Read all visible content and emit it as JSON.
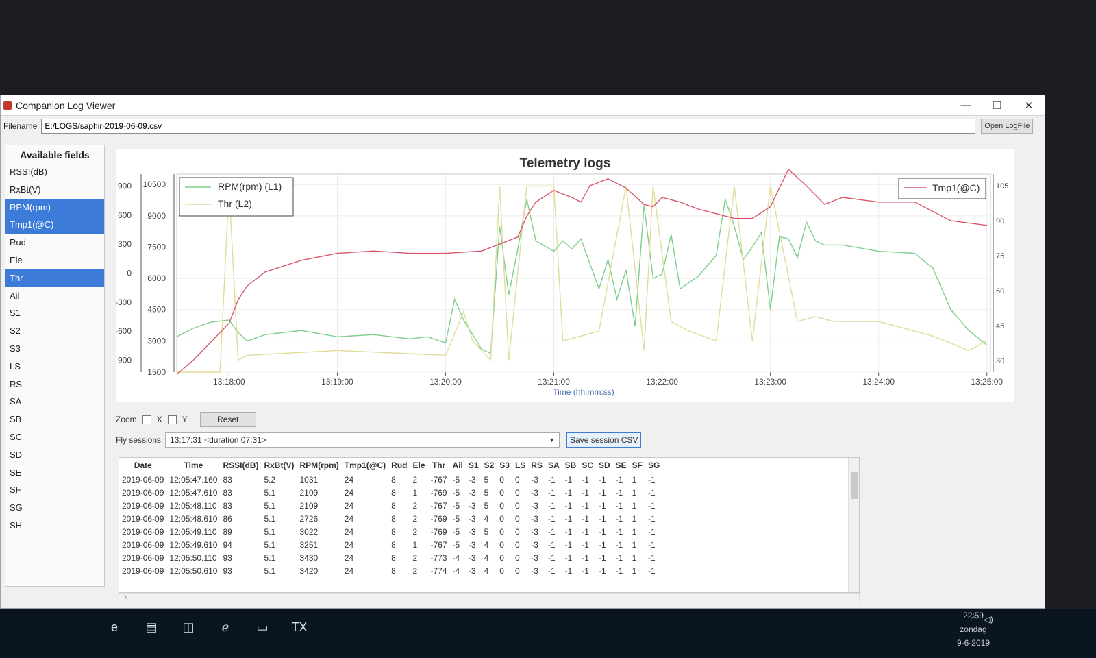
{
  "window": {
    "title": "Companion Log Viewer",
    "controls": {
      "minimize": "—",
      "maximize": "❐",
      "close": "✕"
    }
  },
  "file": {
    "label": "Filename",
    "value": "E:/LOGS/saphir-2019-06-09.csv",
    "open_button": "Open LogFile"
  },
  "sidebar": {
    "title": "Available fields",
    "items": [
      {
        "label": "RSSI(dB)",
        "selected": false
      },
      {
        "label": "RxBt(V)",
        "selected": false
      },
      {
        "label": "RPM(rpm)",
        "selected": true
      },
      {
        "label": "Tmp1(@C)",
        "selected": true
      },
      {
        "label": "Rud",
        "selected": false
      },
      {
        "label": "Ele",
        "selected": false
      },
      {
        "label": "Thr",
        "selected": true
      },
      {
        "label": "Ail",
        "selected": false
      },
      {
        "label": "S1",
        "selected": false
      },
      {
        "label": "S2",
        "selected": false
      },
      {
        "label": "S3",
        "selected": false
      },
      {
        "label": "LS",
        "selected": false
      },
      {
        "label": "RS",
        "selected": false
      },
      {
        "label": "SA",
        "selected": false
      },
      {
        "label": "SB",
        "selected": false
      },
      {
        "label": "SC",
        "selected": false
      },
      {
        "label": "SD",
        "selected": false
      },
      {
        "label": "SE",
        "selected": false
      },
      {
        "label": "SF",
        "selected": false
      },
      {
        "label": "SG",
        "selected": false
      },
      {
        "label": "SH",
        "selected": false
      }
    ]
  },
  "chart_data": {
    "type": "line",
    "title": "Telemetry logs",
    "xlabel": "Time (hh:mm:ss)",
    "x_ticks": [
      "13:18:00",
      "13:19:00",
      "13:20:00",
      "13:21:00",
      "13:22:00",
      "13:23:00",
      "13:24:00",
      "13:25:00"
    ],
    "x_range": [
      "13:17:31",
      "13:25:02"
    ],
    "y_axes": {
      "L2": {
        "ticks": [
          900,
          600,
          300,
          0,
          -300,
          -600,
          -900
        ],
        "range": [
          -1024,
          1024
        ]
      },
      "L1": {
        "ticks": [
          10500,
          9000,
          7500,
          6000,
          4500,
          3000,
          1500
        ],
        "range": [
          1500,
          11000
        ]
      },
      "R1": {
        "ticks": [
          105,
          90,
          75,
          60,
          45,
          30
        ],
        "range": [
          25,
          110
        ]
      }
    },
    "legend_left": {
      "placement": "top-left",
      "entries": [
        "RPM(rpm) (L1)",
        "Thr (L2)"
      ]
    },
    "legend_right": {
      "placement": "top-right",
      "entries": [
        "Tmp1(@C)"
      ]
    },
    "series": [
      {
        "name": "RPM(rpm) (L1)",
        "color": "#7fce8a",
        "axis": "L1",
        "x": [
          "13:17:31",
          "13:17:40",
          "13:17:50",
          "13:18:00",
          "13:18:05",
          "13:18:10",
          "13:18:20",
          "13:18:40",
          "13:19:00",
          "13:19:20",
          "13:19:40",
          "13:19:50",
          "13:20:00",
          "13:20:05",
          "13:20:10",
          "13:20:20",
          "13:20:25",
          "13:20:30",
          "13:20:35",
          "13:20:40",
          "13:20:45",
          "13:20:50",
          "13:21:00",
          "13:21:05",
          "13:21:10",
          "13:21:15",
          "13:21:25",
          "13:21:30",
          "13:21:35",
          "13:21:40",
          "13:21:45",
          "13:21:50",
          "13:21:55",
          "13:22:00",
          "13:22:05",
          "13:22:10",
          "13:22:20",
          "13:22:30",
          "13:22:35",
          "13:22:40",
          "13:22:45",
          "13:22:50",
          "13:22:55",
          "13:23:00",
          "13:23:05",
          "13:23:10",
          "13:23:15",
          "13:23:20",
          "13:23:25",
          "13:23:30",
          "13:23:40",
          "13:24:00",
          "13:24:20",
          "13:24:30",
          "13:24:40",
          "13:24:50",
          "13:25:00"
        ],
        "y": [
          3200,
          3600,
          3900,
          4000,
          3400,
          3000,
          3300,
          3500,
          3200,
          3300,
          3100,
          3200,
          2900,
          5000,
          4000,
          2600,
          2400,
          8500,
          5200,
          7400,
          9800,
          7800,
          7300,
          7800,
          7400,
          7900,
          5500,
          6900,
          5000,
          6400,
          3700,
          9500,
          6000,
          6200,
          8100,
          5500,
          6100,
          7100,
          9800,
          8500,
          6900,
          7500,
          8200,
          4500,
          8000,
          7900,
          7000,
          8700,
          7800,
          7600,
          7600,
          7300,
          7200,
          6500,
          4500,
          3500,
          2800
        ]
      },
      {
        "name": "Thr (L2)",
        "color": "#e0dc9a",
        "axis": "L2",
        "x": [
          "13:17:31",
          "13:17:55",
          "13:18:00",
          "13:18:05",
          "13:18:10",
          "13:19:00",
          "13:20:00",
          "13:20:10",
          "13:20:15",
          "13:20:25",
          "13:20:30",
          "13:20:35",
          "13:20:45",
          "13:21:00",
          "13:21:05",
          "13:21:25",
          "13:21:40",
          "13:21:50",
          "13:21:55",
          "13:22:05",
          "13:22:15",
          "13:22:30",
          "13:22:40",
          "13:22:50",
          "13:23:00",
          "13:23:15",
          "13:23:25",
          "13:23:35",
          "13:24:00",
          "13:24:30",
          "13:24:50",
          "13:25:00"
        ],
        "y": [
          -1024,
          -1024,
          900,
          -900,
          -850,
          -800,
          -850,
          -400,
          -700,
          -900,
          900,
          -900,
          900,
          900,
          -700,
          -600,
          900,
          -800,
          900,
          -500,
          -600,
          -700,
          900,
          -700,
          900,
          -500,
          -450,
          -500,
          -500,
          -650,
          -800,
          -700
        ]
      },
      {
        "name": "Tmp1(@C)",
        "color": "#d9576a",
        "axis": "R1",
        "x": [
          "13:17:31",
          "13:17:40",
          "13:17:50",
          "13:18:00",
          "13:18:05",
          "13:18:10",
          "13:18:20",
          "13:18:40",
          "13:19:00",
          "13:19:20",
          "13:19:40",
          "13:20:00",
          "13:20:20",
          "13:20:40",
          "13:20:45",
          "13:20:50",
          "13:21:00",
          "13:21:10",
          "13:21:15",
          "13:21:20",
          "13:21:30",
          "13:21:40",
          "13:21:50",
          "13:21:55",
          "13:22:00",
          "13:22:10",
          "13:22:20",
          "13:22:30",
          "13:22:40",
          "13:22:50",
          "13:23:00",
          "13:23:05",
          "13:23:10",
          "13:23:20",
          "13:23:30",
          "13:23:40",
          "13:24:00",
          "13:24:20",
          "13:24:40",
          "13:25:00"
        ],
        "y": [
          24,
          30,
          38,
          46,
          56,
          62,
          68,
          73,
          76,
          77,
          76,
          76,
          77,
          83,
          92,
          98,
          103,
          100,
          98,
          105,
          108,
          104,
          97,
          96,
          100,
          98,
          95,
          93,
          91,
          91,
          96,
          104,
          112,
          105,
          97,
          100,
          98,
          98,
          90,
          88
        ]
      }
    ]
  },
  "controls": {
    "zoom_label": "Zoom",
    "zoom_x": "X",
    "zoom_y": "Y",
    "reset": "Reset",
    "sessions_label": "Fly sessions",
    "session_value": "13:17:31 <duration 07:31>",
    "save_csv": "Save session CSV"
  },
  "table": {
    "columns": [
      "Date",
      "Time",
      "RSSI(dB)",
      "RxBt(V)",
      "RPM(rpm)",
      "Tmp1(@C)",
      "Rud",
      "Ele",
      "Thr",
      "Ail",
      "S1",
      "S2",
      "S3",
      "LS",
      "RS",
      "SA",
      "SB",
      "SC",
      "SD",
      "SE",
      "SF",
      "SG"
    ],
    "rows": [
      [
        "2019-06-09",
        "12:05:47.160",
        "83",
        "5.2",
        "1031",
        "24",
        "8",
        "2",
        "-767",
        "-5",
        "-3",
        "5",
        "0",
        "0",
        "-3",
        "-1",
        "-1",
        "-1",
        "-1",
        "-1",
        "1",
        "-1"
      ],
      [
        "2019-06-09",
        "12:05:47.610",
        "83",
        "5.1",
        "2109",
        "24",
        "8",
        "1",
        "-769",
        "-5",
        "-3",
        "5",
        "0",
        "0",
        "-3",
        "-1",
        "-1",
        "-1",
        "-1",
        "-1",
        "1",
        "-1"
      ],
      [
        "2019-06-09",
        "12:05:48.110",
        "83",
        "5.1",
        "2109",
        "24",
        "8",
        "2",
        "-767",
        "-5",
        "-3",
        "5",
        "0",
        "0",
        "-3",
        "-1",
        "-1",
        "-1",
        "-1",
        "-1",
        "1",
        "-1"
      ],
      [
        "2019-06-09",
        "12:05:48.610",
        "86",
        "5.1",
        "2726",
        "24",
        "8",
        "2",
        "-769",
        "-5",
        "-3",
        "4",
        "0",
        "0",
        "-3",
        "-1",
        "-1",
        "-1",
        "-1",
        "-1",
        "1",
        "-1"
      ],
      [
        "2019-06-09",
        "12:05:49.110",
        "89",
        "5.1",
        "3022",
        "24",
        "8",
        "2",
        "-769",
        "-5",
        "-3",
        "5",
        "0",
        "0",
        "-3",
        "-1",
        "-1",
        "-1",
        "-1",
        "-1",
        "1",
        "-1"
      ],
      [
        "2019-06-09",
        "12:05:49.610",
        "94",
        "5.1",
        "3251",
        "24",
        "8",
        "1",
        "-767",
        "-5",
        "-3",
        "4",
        "0",
        "0",
        "-3",
        "-1",
        "-1",
        "-1",
        "-1",
        "-1",
        "1",
        "-1"
      ],
      [
        "2019-06-09",
        "12:05:50.110",
        "93",
        "5.1",
        "3430",
        "24",
        "8",
        "2",
        "-773",
        "-4",
        "-3",
        "4",
        "0",
        "0",
        "-3",
        "-1",
        "-1",
        "-1",
        "-1",
        "-1",
        "1",
        "-1"
      ],
      [
        "2019-06-09",
        "12:05:50.610",
        "93",
        "5.1",
        "3420",
        "24",
        "8",
        "2",
        "-774",
        "-4",
        "-3",
        "4",
        "0",
        "0",
        "-3",
        "-1",
        "-1",
        "-1",
        "-1",
        "-1",
        "1",
        "-1"
      ]
    ]
  },
  "taskbar": {
    "apps": [
      {
        "name": "edge-icon",
        "glyph": "e"
      },
      {
        "name": "file-explorer-icon",
        "glyph": "▤"
      },
      {
        "name": "store-icon",
        "glyph": "◫"
      },
      {
        "name": "internet-explorer-icon",
        "glyph": "ℯ"
      },
      {
        "name": "window-app-icon",
        "glyph": "▭"
      },
      {
        "name": "opentx-icon",
        "glyph": "TX"
      }
    ],
    "time": "22:59",
    "day": "zondag",
    "date": "9-6-2019"
  }
}
